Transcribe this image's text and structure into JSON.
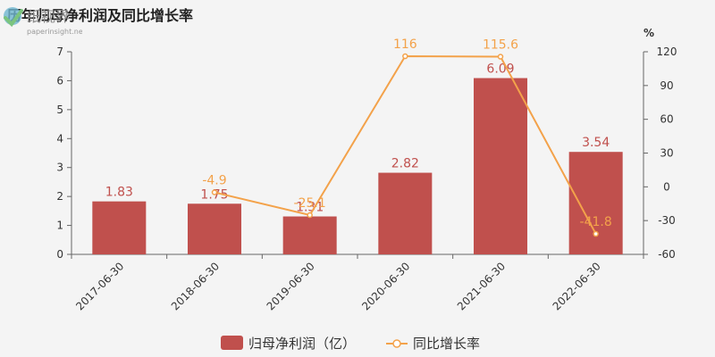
{
  "title": "历年归母净利润及同比增长率",
  "colors": {
    "bar": "#c0504d",
    "line": "#f3a24a",
    "axis": "#666666",
    "background": "#f4f4f4"
  },
  "chart_data": {
    "type": "bar",
    "categories": [
      "2017-06-30",
      "2018-06-30",
      "2019-06-30",
      "2020-06-30",
      "2021-06-30",
      "2022-06-30"
    ],
    "series": [
      {
        "name": "归母净利润（亿）",
        "type": "bar",
        "axis": "left",
        "values": [
          1.83,
          1.75,
          1.31,
          2.82,
          6.09,
          3.54
        ],
        "labels": [
          "1.83",
          "1.75",
          "1.31",
          "2.82",
          "6.09",
          "3.54"
        ]
      },
      {
        "name": "同比增长率",
        "type": "line",
        "axis": "right",
        "values": [
          null,
          -4.9,
          -25.1,
          116,
          115.6,
          -41.8
        ],
        "labels": [
          "",
          "-4.9",
          "-25.1",
          "116",
          "115.6",
          "-41.8"
        ]
      }
    ],
    "left_axis": {
      "ylim": [
        0,
        7
      ],
      "ticks": [
        "0",
        "1",
        "2",
        "3",
        "4",
        "5",
        "6",
        "7"
      ]
    },
    "right_axis": {
      "unit": "%",
      "ylim": [
        -60,
        120
      ],
      "ticks": [
        "-60",
        "-30",
        "0",
        "30",
        "60",
        "90",
        "120"
      ]
    },
    "legend": "bottom",
    "grid": false
  },
  "watermark": {
    "text": "纸视界",
    "url_text": "paperinsight.net"
  }
}
